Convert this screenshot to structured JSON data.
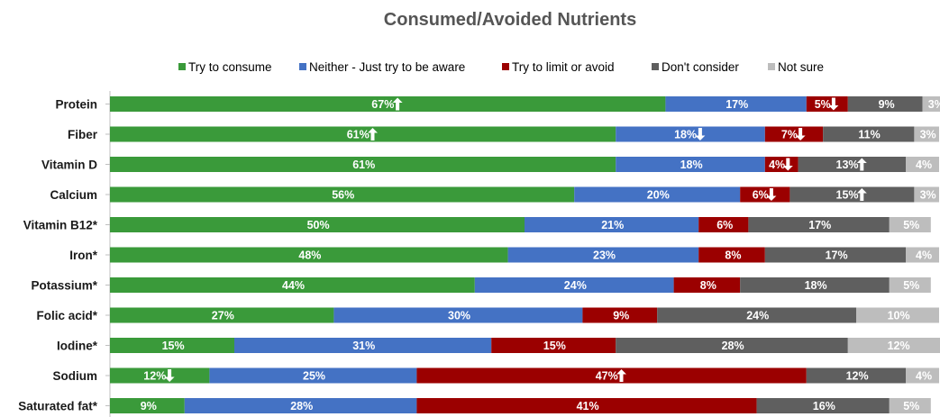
{
  "chart_data": {
    "type": "bar",
    "orientation": "horizontal",
    "stacked": true,
    "title": "Consumed/Avoided Nutrients",
    "xlim": [
      0,
      100
    ],
    "grid": false,
    "legend_position": "top",
    "categories": [
      "Protein",
      "Fiber",
      "Vitamin D",
      "Calcium",
      "Vitamin B12*",
      "Iron*",
      "Potassium*",
      "Folic acid*",
      "Iodine*",
      "Sodium",
      "Saturated fat*"
    ],
    "series": [
      {
        "name": "Try to consume",
        "color": "#3a9a3a",
        "values": [
          67,
          61,
          61,
          56,
          50,
          48,
          44,
          27,
          15,
          12,
          9
        ],
        "labels": [
          "67%",
          "61%",
          "61%",
          "56%",
          "50%",
          "48%",
          "44%",
          "27%",
          "15%",
          "12%",
          "9%"
        ],
        "arrows": [
          "up",
          "up",
          "",
          "",
          "",
          "",
          "",
          "",
          "",
          "down",
          ""
        ]
      },
      {
        "name": "Neither - Just try to be aware",
        "color": "#4472c4",
        "values": [
          17,
          18,
          18,
          20,
          21,
          23,
          24,
          30,
          31,
          25,
          28
        ],
        "labels": [
          "17%",
          "18%",
          "18%",
          "20%",
          "21%",
          "23%",
          "24%",
          "30%",
          "31%",
          "25%",
          "28%"
        ],
        "arrows": [
          "",
          "down",
          "",
          "",
          "",
          "",
          "",
          "",
          "",
          "",
          ""
        ]
      },
      {
        "name": "Try to limit or avoid",
        "color": "#9b0000",
        "values": [
          5,
          7,
          4,
          6,
          6,
          8,
          8,
          9,
          15,
          47,
          41
        ],
        "labels": [
          "5%",
          "7%",
          "4%",
          "6%",
          "6%",
          "8%",
          "8%",
          "9%",
          "15%",
          "47%",
          "41%"
        ],
        "arrows": [
          "down",
          "down",
          "down",
          "down",
          "",
          "",
          "",
          "",
          "",
          "up",
          ""
        ]
      },
      {
        "name": "Don't consider",
        "color": "#5f5f5f",
        "values": [
          9,
          11,
          13,
          15,
          17,
          17,
          18,
          24,
          28,
          12,
          16
        ],
        "labels": [
          "9%",
          "11%",
          "13%",
          "15%",
          "17%",
          "17%",
          "18%",
          "24%",
          "28%",
          "12%",
          "16%"
        ],
        "arrows": [
          "",
          "",
          "up",
          "up",
          "",
          "",
          "",
          "",
          "",
          "",
          ""
        ]
      },
      {
        "name": "Not sure",
        "color": "#bdbdbd",
        "values": [
          3,
          3,
          4,
          3,
          5,
          4,
          5,
          10,
          12,
          4,
          5
        ],
        "labels": [
          "3%",
          "3%",
          "4%",
          "3%",
          "5%",
          "4%",
          "5%",
          "10%",
          "12%",
          "4%",
          "5%"
        ],
        "arrows": [
          "",
          "",
          "",
          "",
          "",
          "",
          "",
          "",
          "",
          "",
          ""
        ]
      }
    ]
  }
}
